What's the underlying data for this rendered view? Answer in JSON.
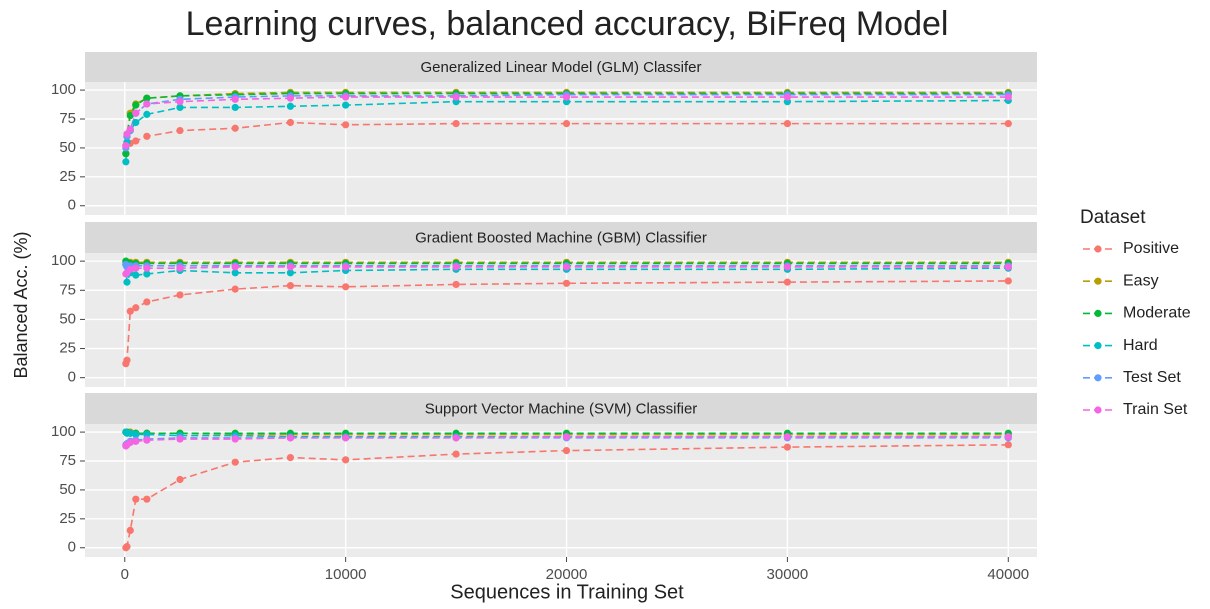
{
  "title": "Learning curves, balanced accuracy, BiFreq Model",
  "x_label": "Sequences in Training Set",
  "y_label": "Balanced Acc. (%)",
  "legend_title": "Dataset",
  "chart_data": [
    {
      "type": "line",
      "title": "Generalized Linear Model (GLM) Classifer",
      "x": [
        50,
        100,
        250,
        500,
        1000,
        2500,
        5000,
        7500,
        10000,
        15000,
        20000,
        30000,
        40000
      ],
      "xlim": [
        -1800,
        41300
      ],
      "xticks": [
        0,
        10000,
        20000,
        30000,
        40000
      ],
      "ylim": [
        -8,
        107
      ],
      "yticks": [
        0,
        25,
        50,
        75,
        100
      ],
      "series": [
        {
          "name": "Positive",
          "color": "#F8766D",
          "values": [
            52,
            55,
            54,
            56,
            60,
            65,
            67,
            72,
            70,
            71,
            71,
            71,
            71
          ]
        },
        {
          "name": "Easy",
          "color": "#B79F00",
          "values": [
            45,
            62,
            80,
            88,
            93,
            95,
            97,
            98,
            98,
            98,
            98,
            98,
            98
          ]
        },
        {
          "name": "Moderate",
          "color": "#00BA38",
          "values": [
            45,
            60,
            78,
            87,
            93,
            95,
            96,
            97,
            97,
            97,
            97,
            97,
            97
          ]
        },
        {
          "name": "Hard",
          "color": "#00BFC4",
          "values": [
            38,
            55,
            65,
            72,
            79,
            85,
            85,
            86,
            87,
            90,
            90,
            90,
            91
          ]
        },
        {
          "name": "Test Set",
          "color": "#619CFF",
          "values": [
            50,
            60,
            66,
            80,
            88,
            92,
            94,
            95,
            95,
            95,
            96,
            96,
            96
          ]
        },
        {
          "name": "Train Set",
          "color": "#F564E3",
          "values": [
            52,
            62,
            66,
            80,
            88,
            90,
            92,
            93,
            94,
            94,
            94,
            94,
            94
          ]
        }
      ]
    },
    {
      "type": "line",
      "title": "Gradient Boosted Machine (GBM) Classifier",
      "x": [
        50,
        100,
        250,
        500,
        1000,
        2500,
        5000,
        7500,
        10000,
        15000,
        20000,
        30000,
        40000
      ],
      "xlim": [
        -1800,
        41300
      ],
      "xticks": [
        0,
        10000,
        20000,
        30000,
        40000
      ],
      "ylim": [
        -8,
        107
      ],
      "yticks": [
        0,
        25,
        50,
        75,
        100
      ],
      "series": [
        {
          "name": "Positive",
          "color": "#F8766D",
          "values": [
            12,
            15,
            57,
            60,
            65,
            71,
            76,
            79,
            78,
            80,
            81,
            82,
            83
          ]
        },
        {
          "name": "Easy",
          "color": "#B79F00",
          "values": [
            99,
            99,
            99,
            99,
            99,
            99,
            99,
            99,
            99,
            99,
            99,
            99,
            99
          ]
        },
        {
          "name": "Moderate",
          "color": "#00BA38",
          "values": [
            100,
            99,
            98,
            98,
            98,
            98,
            98,
            98,
            98,
            98,
            98,
            98,
            98
          ]
        },
        {
          "name": "Hard",
          "color": "#00BFC4",
          "values": [
            97,
            82,
            90,
            88,
            89,
            92,
            90,
            90,
            92,
            93,
            93,
            93,
            94
          ]
        },
        {
          "name": "Test Set",
          "color": "#619CFF",
          "values": [
            97,
            95,
            96,
            96,
            96,
            96,
            96,
            96,
            96,
            96,
            96,
            96,
            96
          ]
        },
        {
          "name": "Train Set",
          "color": "#F564E3",
          "values": [
            89,
            90,
            93,
            94,
            94,
            94,
            95,
            95,
            95,
            95,
            95,
            95,
            95
          ]
        }
      ]
    },
    {
      "type": "line",
      "title": "Support Vector Machine (SVM) Classifier",
      "x": [
        50,
        100,
        250,
        500,
        1000,
        2500,
        5000,
        7500,
        10000,
        15000,
        20000,
        30000,
        40000
      ],
      "xlim": [
        -1800,
        41300
      ],
      "xticks": [
        0,
        10000,
        20000,
        30000,
        40000
      ],
      "ylim": [
        -8,
        107
      ],
      "yticks": [
        0,
        25,
        50,
        75,
        100
      ],
      "series": [
        {
          "name": "Positive",
          "color": "#F8766D",
          "values": [
            0,
            1,
            15,
            42,
            42,
            59,
            74,
            78,
            76,
            81,
            84,
            87,
            89
          ]
        },
        {
          "name": "Easy",
          "color": "#B79F00",
          "values": [
            100,
            100,
            100,
            99,
            99,
            99,
            98,
            98,
            98,
            98,
            98,
            98,
            98
          ]
        },
        {
          "name": "Moderate",
          "color": "#00BA38",
          "values": [
            100,
            100,
            99,
            99,
            99,
            99,
            99,
            99,
            99,
            99,
            99,
            99,
            99
          ]
        },
        {
          "name": "Hard",
          "color": "#00BFC4",
          "values": [
            100,
            99,
            99,
            98,
            98,
            97,
            97,
            96,
            96,
            96,
            96,
            96,
            96
          ]
        },
        {
          "name": "Test Set",
          "color": "#619CFF",
          "values": [
            89,
            90,
            92,
            93,
            94,
            95,
            95,
            95,
            95,
            95,
            95,
            95,
            95
          ]
        },
        {
          "name": "Train Set",
          "color": "#F564E3",
          "values": [
            88,
            89,
            91,
            92,
            93,
            94,
            94,
            95,
            95,
            95,
            96,
            96,
            96
          ]
        }
      ]
    }
  ]
}
